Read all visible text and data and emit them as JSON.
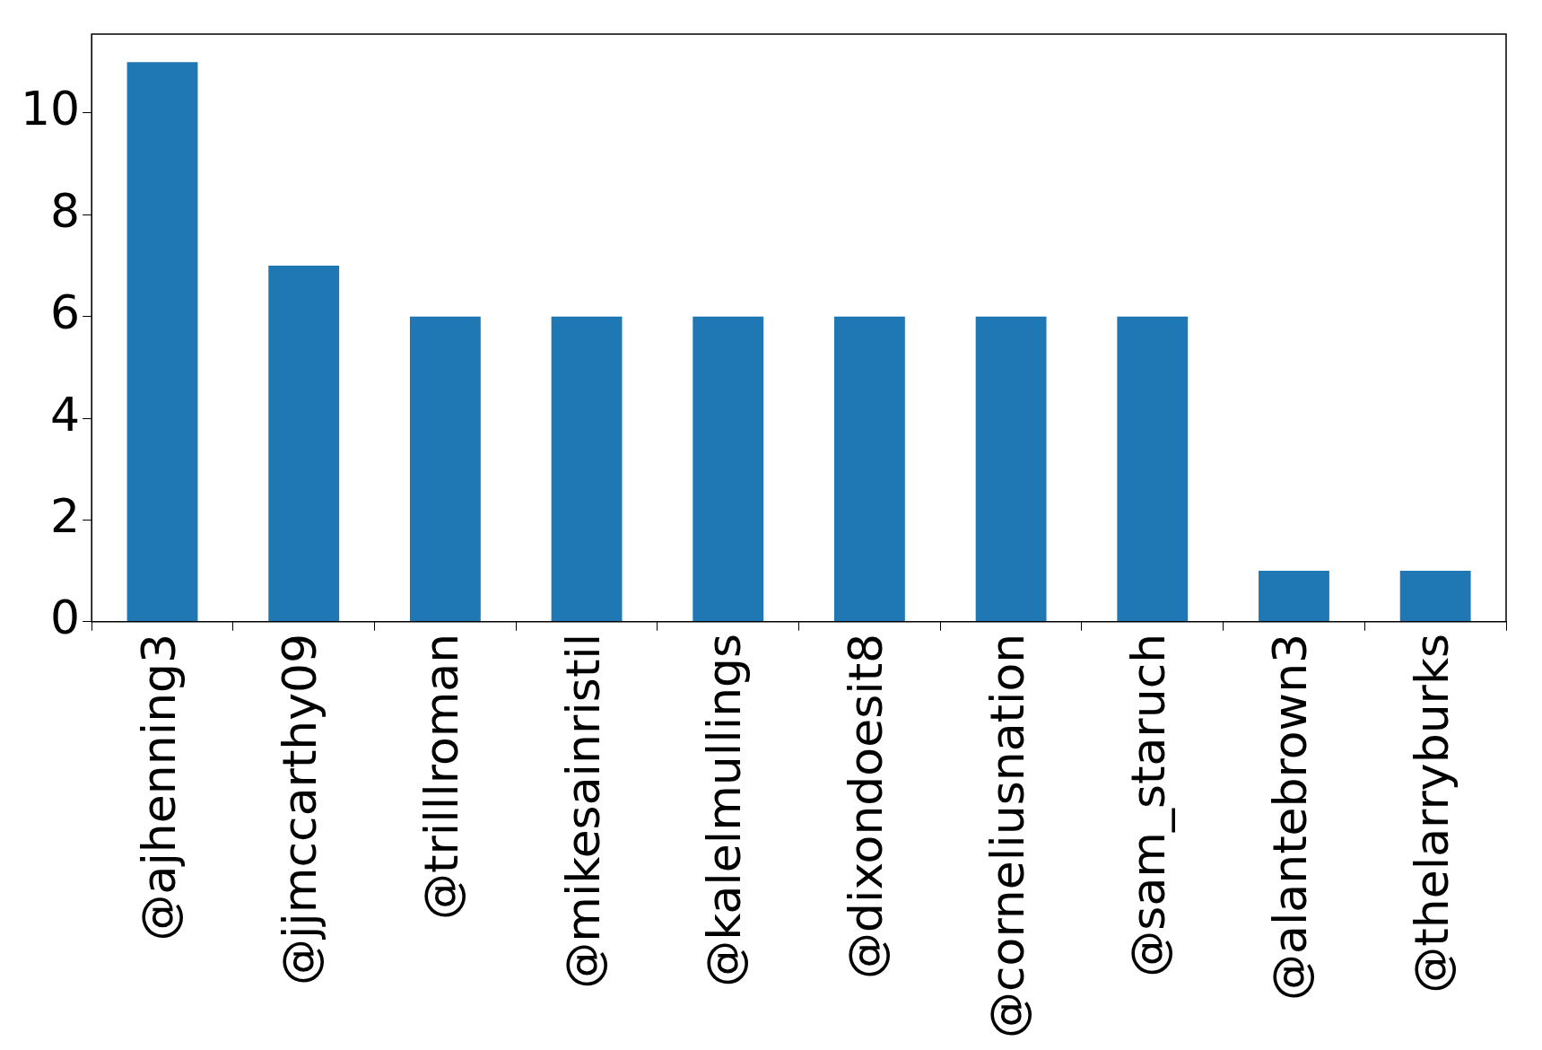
{
  "chart_data": {
    "type": "bar",
    "categories": [
      "@ajhenning3",
      "@jjmccarthy09",
      "@trilllroman",
      "@mikesainristil",
      "@kalelmullings",
      "@dixondoesit8",
      "@corneliusnation",
      "@sam_staruch",
      "@alantebrown3",
      "@thelarryburks"
    ],
    "values": [
      11,
      7,
      6,
      6,
      6,
      6,
      6,
      6,
      1,
      1
    ],
    "color": "#1f77b4",
    "ylim": [
      0,
      11.55
    ],
    "yticks": [
      0,
      2,
      4,
      6,
      8,
      10
    ],
    "grid": false,
    "legend": false
  }
}
